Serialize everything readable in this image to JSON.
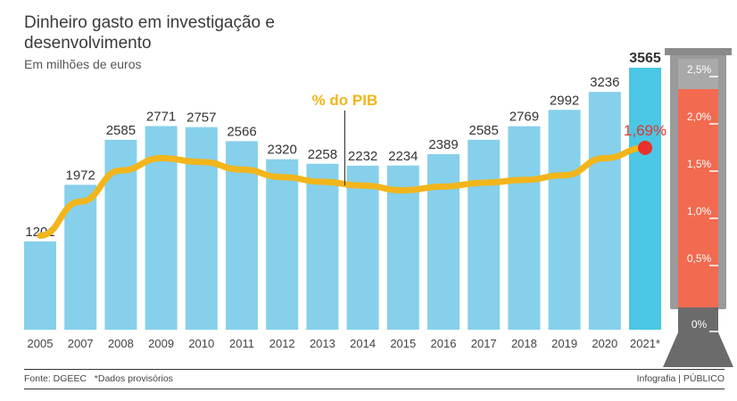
{
  "title": "Dinheiro gasto em investigação e desenvolvimento",
  "subtitle": "Em milhões de euros",
  "footer": {
    "source": "Fonte: DGEEC",
    "note": "*Dados provisórios",
    "credit": "Infografia | PÚBLICO"
  },
  "colors": {
    "bar": "#86d0eb",
    "bar_highlight": "#4ac7e4",
    "line": "#f2b51b",
    "dot": "#e8312b",
    "gauge_fill": "#f26a4f",
    "gauge_frame": "#9a9a9a",
    "gauge_base": "#6b6b6b"
  },
  "chart_data": [
    {
      "type": "bar",
      "title": "Dinheiro gasto em investigação e desenvolvimento",
      "ylabel": "Em milhões de euros",
      "categories": [
        "2005",
        "2007",
        "2008",
        "2009",
        "2010",
        "2011",
        "2012",
        "2013",
        "2014",
        "2015",
        "2016",
        "2017",
        "2018",
        "2019",
        "2020",
        "2021*"
      ],
      "values": [
        1201,
        1972,
        2585,
        2771,
        2757,
        2566,
        2320,
        2258,
        2232,
        2234,
        2389,
        2585,
        2769,
        2992,
        3236,
        3565
      ],
      "highlight_index": 15,
      "ylim": [
        0,
        3565
      ]
    },
    {
      "type": "line",
      "name": "% do PIB",
      "categories": [
        "2005",
        "2007",
        "2008",
        "2009",
        "2010",
        "2011",
        "2012",
        "2013",
        "2014",
        "2015",
        "2016",
        "2017",
        "2018",
        "2019",
        "2020",
        "2021*"
      ],
      "values": [
        0.76,
        1.12,
        1.45,
        1.58,
        1.54,
        1.46,
        1.38,
        1.33,
        1.29,
        1.24,
        1.28,
        1.32,
        1.35,
        1.4,
        1.58,
        1.69
      ],
      "labeled_value": "1,69%",
      "ylim": [
        0,
        2.5
      ]
    },
    {
      "type": "gauge",
      "value": 1.69,
      "range": [
        0,
        2.5
      ],
      "tick_labels": [
        "2,5%",
        "2,0%",
        "1,5%",
        "1,0%",
        "0,5%",
        "0%"
      ]
    }
  ]
}
